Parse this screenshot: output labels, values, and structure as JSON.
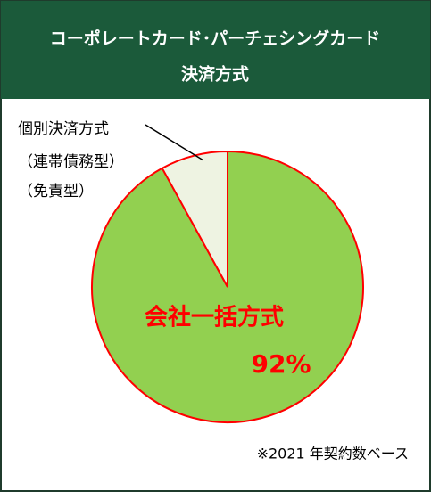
{
  "chart_data": {
    "type": "pie",
    "title": "コーポレートカード･パーチェシングカード",
    "subtitle": "決済方式",
    "categories": [
      "会社一括方式",
      [
        "個別決済方式",
        "（連帯債務型）",
        "（免責型）"
      ]
    ],
    "values": [
      92,
      8
    ],
    "value_labels": [
      "92%",
      null
    ],
    "colors": [
      "#92d050",
      "#eef3e2"
    ],
    "edge_color": "#ff0000",
    "note": "※2021 年契約数ベース"
  }
}
